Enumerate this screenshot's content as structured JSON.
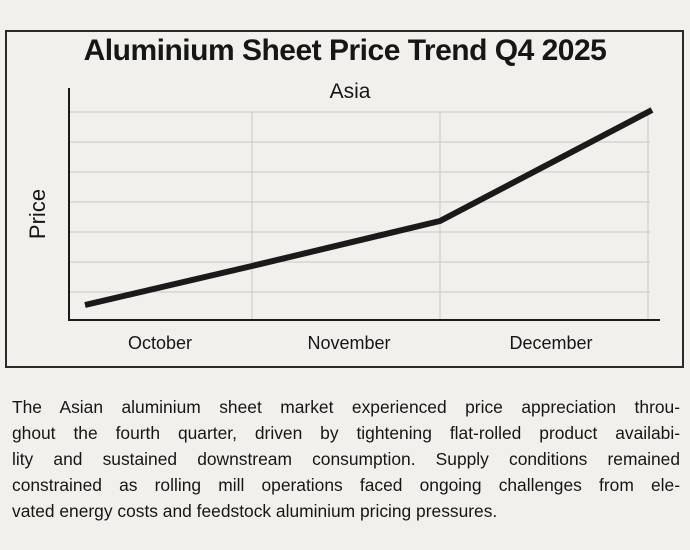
{
  "chart_data": {
    "type": "line",
    "title": "Aluminium Sheet Price Trend Q4 2025",
    "subtitle": "Asia",
    "xlabel": "",
    "ylabel": "Price",
    "categories": [
      "October",
      "November",
      "December"
    ],
    "x": [
      0,
      1,
      2,
      3
    ],
    "values": [
      0.5,
      1.8,
      3.3,
      7.0
    ],
    "ylim": [
      0,
      7
    ],
    "yticks_labeled": false,
    "grid": true,
    "line_color": "#1a1a1a"
  },
  "description": {
    "lines": [
      "The Asian aluminium sheet market experienced price appreciation throu-",
      "ghout the fourth quarter, driven by tightening flat-rolled product availabi-",
      "lity and sustained downstream consumption. Supply conditions remained",
      "constrained as rolling mill operations faced ongoing challenges from ele-",
      "vated energy costs and feedstock aluminium pricing pressures."
    ]
  }
}
